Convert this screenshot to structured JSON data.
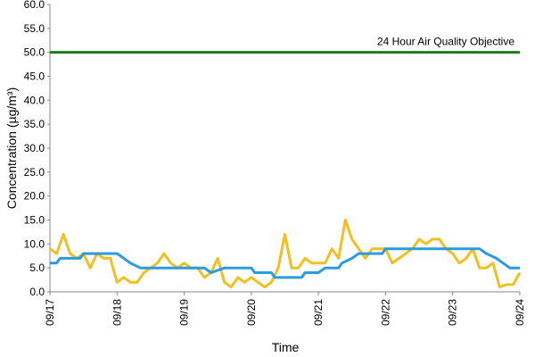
{
  "chart_data": {
    "type": "line",
    "y_label": "Concentration (µg/m³)",
    "x_label": "Time",
    "xlim": [
      0,
      7
    ],
    "xticks": [
      {
        "value": 0,
        "label": "09/17"
      },
      {
        "value": 1,
        "label": "09/18"
      },
      {
        "value": 2,
        "label": "09/19"
      },
      {
        "value": 3,
        "label": "09/20"
      },
      {
        "value": 4,
        "label": "09/21"
      },
      {
        "value": 5,
        "label": "09/22"
      },
      {
        "value": 6,
        "label": "09/23"
      },
      {
        "value": 7,
        "label": "09/24"
      }
    ],
    "ylim": [
      0,
      60
    ],
    "yticks": [
      {
        "value": 0,
        "label": "0.0"
      },
      {
        "value": 5,
        "label": "5.0"
      },
      {
        "value": 10,
        "label": "10.0"
      },
      {
        "value": 15,
        "label": "15.0"
      },
      {
        "value": 20,
        "label": "20.0"
      },
      {
        "value": 25,
        "label": "25.0"
      },
      {
        "value": 30,
        "label": "30.0"
      },
      {
        "value": 35,
        "label": "35.0"
      },
      {
        "value": 40,
        "label": "40.0"
      },
      {
        "value": 45,
        "label": "45.0"
      },
      {
        "value": 50,
        "label": "50.0"
      },
      {
        "value": 55,
        "label": "55.0"
      },
      {
        "value": 60,
        "label": "60.0"
      }
    ],
    "grid": false,
    "objective": {
      "value": 50,
      "label": "24 Hour Air Quality Objective",
      "color": "#1e7b1e"
    },
    "series": [
      {
        "color": "#f0c020",
        "x": [
          0,
          0.1,
          0.2,
          0.3,
          0.4,
          0.5,
          0.6,
          0.7,
          0.8,
          0.9,
          1.0,
          1.1,
          1.2,
          1.3,
          1.4,
          1.5,
          1.6,
          1.7,
          1.8,
          1.9,
          2.0,
          2.1,
          2.2,
          2.3,
          2.4,
          2.5,
          2.6,
          2.7,
          2.8,
          2.9,
          3.0,
          3.1,
          3.2,
          3.3,
          3.4,
          3.5,
          3.6,
          3.7,
          3.8,
          3.9,
          4.0,
          4.1,
          4.2,
          4.3,
          4.4,
          4.5,
          4.6,
          4.7,
          4.8,
          4.9,
          5.0,
          5.1,
          5.2,
          5.3,
          5.4,
          5.5,
          5.6,
          5.7,
          5.8,
          5.9,
          6.0,
          6.1,
          6.2,
          6.3,
          6.4,
          6.5,
          6.6,
          6.7,
          6.8,
          6.9,
          7.0
        ],
        "values": [
          9,
          8,
          12,
          8,
          7,
          8,
          5,
          8,
          7,
          7,
          2,
          3,
          2,
          2,
          4,
          5,
          6,
          8,
          6,
          5,
          6,
          5,
          5,
          3,
          4,
          7,
          2,
          1,
          3,
          2,
          3,
          2,
          1,
          2,
          5,
          12,
          5,
          5,
          7,
          6,
          6,
          6,
          9,
          7,
          15,
          11,
          9,
          7,
          9,
          9,
          9,
          6,
          7,
          8,
          9,
          11,
          10,
          11,
          11,
          9,
          8,
          6,
          7,
          9,
          5,
          5,
          6,
          1,
          1.5,
          1.5,
          4
        ]
      },
      {
        "color": "#2b9be0",
        "x": [
          0,
          0.1,
          0.15,
          0.45,
          0.5,
          1.0,
          1.1,
          1.2,
          1.35,
          2.3,
          2.4,
          2.6,
          3.0,
          3.05,
          3.3,
          3.35,
          3.75,
          3.8,
          4.0,
          4.1,
          4.3,
          4.35,
          4.5,
          4.6,
          4.95,
          5.0,
          6.4,
          6.5,
          6.65,
          6.75,
          6.85,
          7.0
        ],
        "values": [
          6,
          6,
          7,
          7,
          8,
          8,
          7,
          6,
          5,
          5,
          4,
          5,
          5,
          4,
          4,
          3,
          3,
          4,
          4,
          5,
          5,
          6,
          7,
          8,
          8,
          9,
          9,
          8,
          7,
          6,
          5,
          5
        ]
      }
    ]
  }
}
